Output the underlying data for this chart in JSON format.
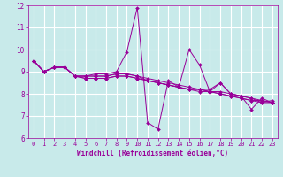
{
  "xlabel": "Windchill (Refroidissement éolien,°C)",
  "ylabel": "",
  "bg_color": "#c8eaea",
  "line_color": "#990099",
  "grid_color": "#ffffff",
  "xlim": [
    -0.5,
    23.5
  ],
  "ylim": [
    6,
    12
  ],
  "yticks": [
    6,
    7,
    8,
    9,
    10,
    11,
    12
  ],
  "xticks": [
    0,
    1,
    2,
    3,
    4,
    5,
    6,
    7,
    8,
    9,
    10,
    11,
    12,
    13,
    14,
    15,
    16,
    17,
    18,
    19,
    20,
    21,
    22,
    23
  ],
  "series": [
    [
      9.5,
      9.0,
      9.2,
      9.2,
      8.8,
      8.8,
      8.9,
      8.9,
      9.0,
      9.9,
      11.9,
      6.7,
      6.4,
      8.6,
      8.3,
      8.2,
      8.2,
      8.2,
      8.5,
      8.0,
      7.9,
      7.8,
      7.6,
      7.7
    ],
    [
      9.5,
      9.0,
      9.2,
      9.2,
      8.8,
      8.8,
      8.8,
      8.8,
      8.9,
      8.9,
      8.8,
      8.7,
      8.6,
      8.5,
      8.4,
      8.3,
      8.2,
      8.1,
      8.1,
      8.0,
      7.9,
      7.8,
      7.7,
      7.6
    ],
    [
      9.5,
      9.0,
      9.2,
      9.2,
      8.8,
      8.8,
      8.8,
      8.8,
      8.9,
      8.9,
      8.8,
      8.6,
      8.5,
      8.4,
      8.3,
      8.2,
      8.2,
      8.1,
      8.0,
      7.9,
      7.8,
      7.7,
      7.7,
      7.6
    ],
    [
      9.5,
      9.0,
      9.2,
      9.2,
      8.8,
      8.7,
      8.7,
      8.7,
      8.8,
      8.8,
      8.7,
      8.6,
      8.5,
      8.4,
      8.3,
      8.2,
      8.1,
      8.1,
      8.0,
      7.9,
      7.8,
      7.7,
      7.6,
      7.6
    ],
    [
      9.5,
      9.0,
      9.2,
      9.2,
      8.8,
      8.7,
      8.7,
      8.7,
      8.8,
      8.8,
      8.7,
      8.6,
      8.5,
      8.4,
      8.3,
      10.0,
      9.3,
      8.1,
      8.5,
      8.0,
      7.9,
      7.3,
      7.8,
      7.6
    ]
  ],
  "marker": "D",
  "markersize": 2.0,
  "linewidth": 0.7,
  "tick_fontsize": 5.0,
  "xlabel_fontsize": 5.5
}
